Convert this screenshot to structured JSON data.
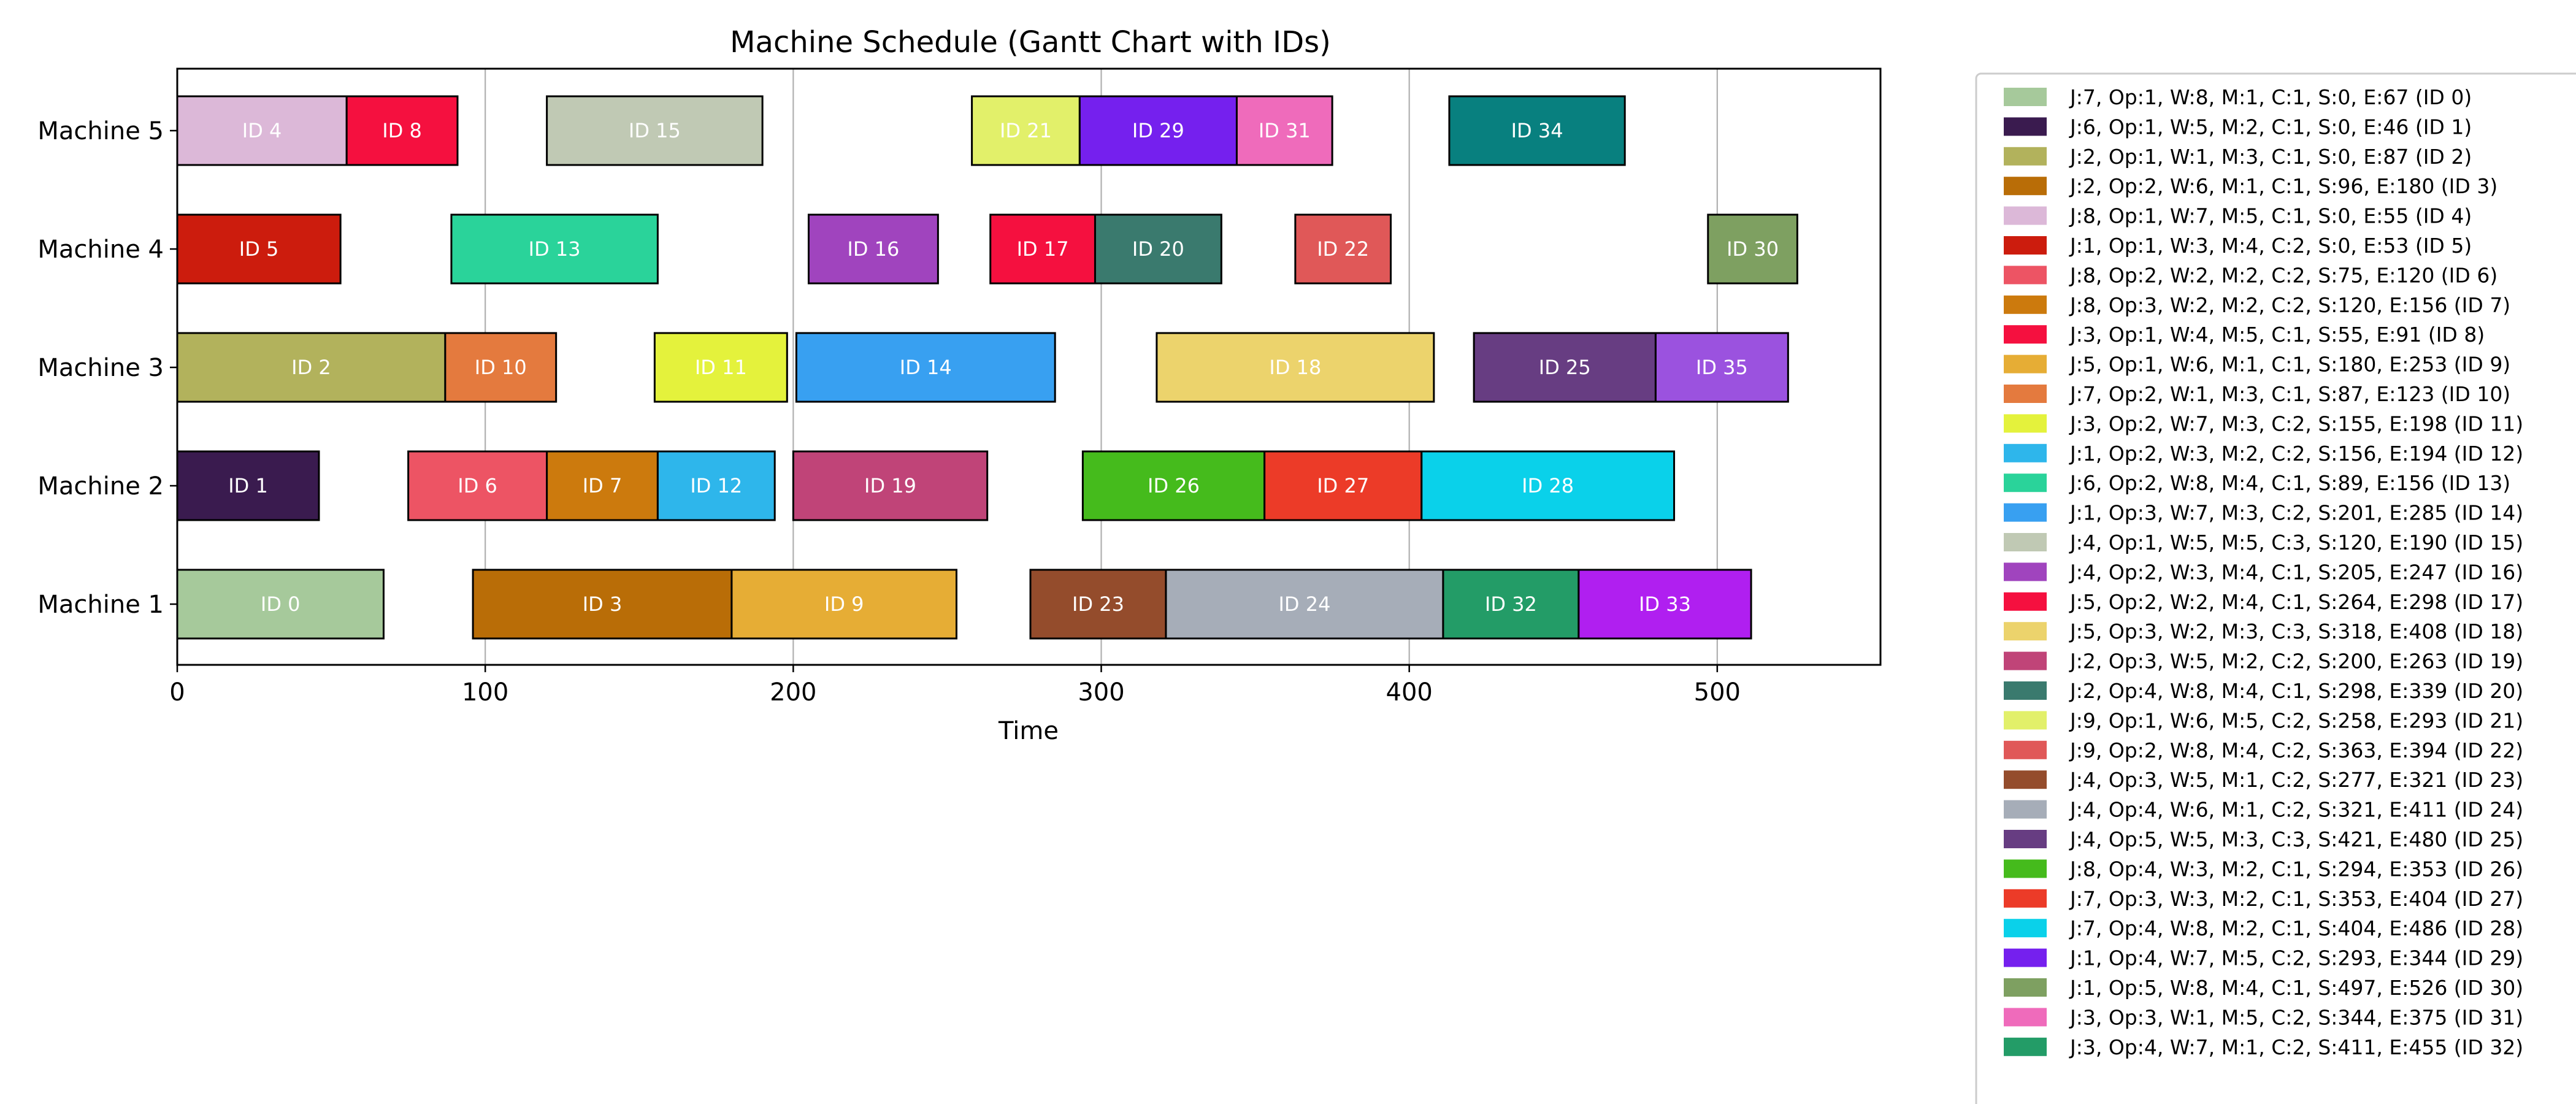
{
  "chart_data": {
    "type": "bar",
    "orientation": "horizontal",
    "subtype": "gantt",
    "title": "Machine Schedule (Gantt Chart with IDs)",
    "xlabel": "Time",
    "ylabel": "",
    "xlim": [
      0,
      553
    ],
    "xticks": [
      0,
      100,
      200,
      300,
      400,
      500
    ],
    "grid": "vertical",
    "legend_position": "outside-right",
    "categories": [
      "Machine 5",
      "Machine 4",
      "Machine 3",
      "Machine 2",
      "Machine 1"
    ],
    "tasks": [
      {
        "id": 0,
        "label": "ID 0",
        "machine": 1,
        "start": 0,
        "end": 67,
        "color": "#a6c99b",
        "legend": "J:7, Op:1, W:8, M:1, C:1, S:0, E:67 (ID 0)"
      },
      {
        "id": 1,
        "label": "ID 1",
        "machine": 2,
        "start": 0,
        "end": 46,
        "color": "#3a1b4f",
        "legend": "J:6, Op:1, W:5, M:2, C:1, S:0, E:46 (ID 1)"
      },
      {
        "id": 2,
        "label": "ID 2",
        "machine": 3,
        "start": 0,
        "end": 87,
        "color": "#b2b25c",
        "legend": "J:2, Op:1, W:1, M:3, C:1, S:0, E:87 (ID 2)"
      },
      {
        "id": 3,
        "label": "ID 3",
        "machine": 1,
        "start": 96,
        "end": 180,
        "color": "#b96d07",
        "legend": "J:2, Op:2, W:6, M:1, C:1, S:96, E:180 (ID 3)"
      },
      {
        "id": 4,
        "label": "ID 4",
        "machine": 5,
        "start": 0,
        "end": 55,
        "color": "#dcb8d8",
        "legend": "J:8, Op:1, W:7, M:5, C:1, S:0, E:55 (ID 4)"
      },
      {
        "id": 5,
        "label": "ID 5",
        "machine": 4,
        "start": 0,
        "end": 53,
        "color": "#cc1c0d",
        "legend": "J:1, Op:1, W:3, M:4, C:2, S:0, E:53 (ID 5)"
      },
      {
        "id": 6,
        "label": "ID 6",
        "machine": 2,
        "start": 75,
        "end": 120,
        "color": "#ed5464",
        "legend": "J:8, Op:2, W:2, M:2, C:2, S:75, E:120 (ID 6)"
      },
      {
        "id": 7,
        "label": "ID 7",
        "machine": 2,
        "start": 120,
        "end": 156,
        "color": "#cc7a0d",
        "legend": "J:8, Op:3, W:2, M:2, C:2, S:120, E:156 (ID 7)"
      },
      {
        "id": 8,
        "label": "ID 8",
        "machine": 5,
        "start": 55,
        "end": 91,
        "color": "#f5103f",
        "legend": "J:3, Op:1, W:4, M:5, C:1, S:55, E:91 (ID 8)"
      },
      {
        "id": 9,
        "label": "ID 9",
        "machine": 1,
        "start": 180,
        "end": 253,
        "color": "#e6ad35",
        "legend": "J:5, Op:1, W:6, M:1, C:1, S:180, E:253 (ID 9)"
      },
      {
        "id": 10,
        "label": "ID 10",
        "machine": 3,
        "start": 87,
        "end": 123,
        "color": "#e47a3e",
        "legend": "J:7, Op:2, W:1, M:3, C:1, S:87, E:123 (ID 10)"
      },
      {
        "id": 11,
        "label": "ID 11",
        "machine": 3,
        "start": 155,
        "end": 198,
        "color": "#e4f23c",
        "legend": "J:3, Op:2, W:7, M:3, C:2, S:155, E:198 (ID 11)"
      },
      {
        "id": 12,
        "label": "ID 12",
        "machine": 2,
        "start": 156,
        "end": 194,
        "color": "#2eb6eb",
        "legend": "J:1, Op:2, W:3, M:2, C:2, S:156, E:194 (ID 12)"
      },
      {
        "id": 13,
        "label": "ID 13",
        "machine": 4,
        "start": 89,
        "end": 156,
        "color": "#2ad39a",
        "legend": "J:6, Op:2, W:8, M:4, C:1, S:89, E:156 (ID 13)"
      },
      {
        "id": 14,
        "label": "ID 14",
        "machine": 3,
        "start": 201,
        "end": 285,
        "color": "#38a0f1",
        "legend": "J:1, Op:3, W:7, M:3, C:2, S:201, E:285 (ID 14)"
      },
      {
        "id": 15,
        "label": "ID 15",
        "machine": 5,
        "start": 120,
        "end": 190,
        "color": "#c0c9b4",
        "legend": "J:4, Op:1, W:5, M:5, C:3, S:120, E:190 (ID 15)"
      },
      {
        "id": 16,
        "label": "ID 16",
        "machine": 4,
        "start": 205,
        "end": 247,
        "color": "#a044be",
        "legend": "J:4, Op:2, W:3, M:4, C:1, S:205, E:247 (ID 16)"
      },
      {
        "id": 17,
        "label": "ID 17",
        "machine": 4,
        "start": 264,
        "end": 298,
        "color": "#f5103f",
        "legend": "J:5, Op:2, W:2, M:4, C:1, S:264, E:298 (ID 17)"
      },
      {
        "id": 18,
        "label": "ID 18",
        "machine": 3,
        "start": 318,
        "end": 408,
        "color": "#ecd36c",
        "legend": "J:5, Op:3, W:2, M:3, C:3, S:318, E:408 (ID 18)"
      },
      {
        "id": 19,
        "label": "ID 19",
        "machine": 2,
        "start": 200,
        "end": 263,
        "color": "#c04478",
        "legend": "J:2, Op:3, W:5, M:2, C:2, S:200, E:263 (ID 19)"
      },
      {
        "id": 20,
        "label": "ID 20",
        "machine": 4,
        "start": 298,
        "end": 339,
        "color": "#3a7a6e",
        "legend": "J:2, Op:4, W:8, M:4, C:1, S:298, E:339 (ID 20)"
      },
      {
        "id": 21,
        "label": "ID 21",
        "machine": 5,
        "start": 258,
        "end": 293,
        "color": "#e2f06a",
        "legend": "J:9, Op:1, W:6, M:5, C:2, S:258, E:293 (ID 21)"
      },
      {
        "id": 22,
        "label": "ID 22",
        "machine": 4,
        "start": 363,
        "end": 394,
        "color": "#e05858",
        "legend": "J:9, Op:2, W:8, M:4, C:2, S:363, E:394 (ID 22)"
      },
      {
        "id": 23,
        "label": "ID 23",
        "machine": 1,
        "start": 277,
        "end": 321,
        "color": "#944c2c",
        "legend": "J:4, Op:3, W:5, M:1, C:2, S:277, E:321 (ID 23)"
      },
      {
        "id": 24,
        "label": "ID 24",
        "machine": 1,
        "start": 321,
        "end": 411,
        "color": "#a6adb8",
        "legend": "J:4, Op:4, W:6, M:1, C:2, S:321, E:411 (ID 24)"
      },
      {
        "id": 25,
        "label": "ID 25",
        "machine": 3,
        "start": 421,
        "end": 480,
        "color": "#673d82",
        "legend": "J:4, Op:5, W:5, M:3, C:3, S:421, E:480 (ID 25)"
      },
      {
        "id": 26,
        "label": "ID 26",
        "machine": 2,
        "start": 294,
        "end": 353,
        "color": "#45bb1c",
        "legend": "J:8, Op:4, W:3, M:2, C:1, S:294, E:353 (ID 26)"
      },
      {
        "id": 27,
        "label": "ID 27",
        "machine": 2,
        "start": 353,
        "end": 404,
        "color": "#ec3b28",
        "legend": "J:7, Op:3, W:3, M:2, C:1, S:353, E:404 (ID 27)"
      },
      {
        "id": 28,
        "label": "ID 28",
        "machine": 2,
        "start": 404,
        "end": 486,
        "color": "#0ad1ea",
        "legend": "J:7, Op:4, W:8, M:2, C:1, S:404, E:486 (ID 28)"
      },
      {
        "id": 29,
        "label": "ID 29",
        "machine": 5,
        "start": 293,
        "end": 344,
        "color": "#7520ee",
        "legend": "J:1, Op:4, W:7, M:5, C:2, S:293, E:344 (ID 29)"
      },
      {
        "id": 30,
        "label": "ID 30",
        "machine": 4,
        "start": 497,
        "end": 526,
        "color": "#7ea061",
        "legend": "J:1, Op:5, W:8, M:4, C:1, S:497, E:526 (ID 30)"
      },
      {
        "id": 31,
        "label": "ID 31",
        "machine": 5,
        "start": 344,
        "end": 375,
        "color": "#ef6bbb",
        "legend": "J:3, Op:3, W:1, M:5, C:2, S:344, E:375 (ID 31)"
      },
      {
        "id": 32,
        "label": "ID 32",
        "machine": 1,
        "start": 411,
        "end": 455,
        "color": "#239c67",
        "legend": "J:3, Op:4, W:7, M:1, C:2, S:411, E:455 (ID 32)"
      },
      {
        "id": 33,
        "label": "ID 33",
        "machine": 1,
        "start": 455,
        "end": 511,
        "color": "#b01ff0",
        "legend": ""
      },
      {
        "id": 34,
        "label": "ID 34",
        "machine": 5,
        "start": 413,
        "end": 470,
        "color": "#08807f",
        "legend": ""
      },
      {
        "id": 35,
        "label": "ID 35",
        "machine": 3,
        "start": 480,
        "end": 523,
        "color": "#9b52df",
        "legend": ""
      }
    ]
  }
}
